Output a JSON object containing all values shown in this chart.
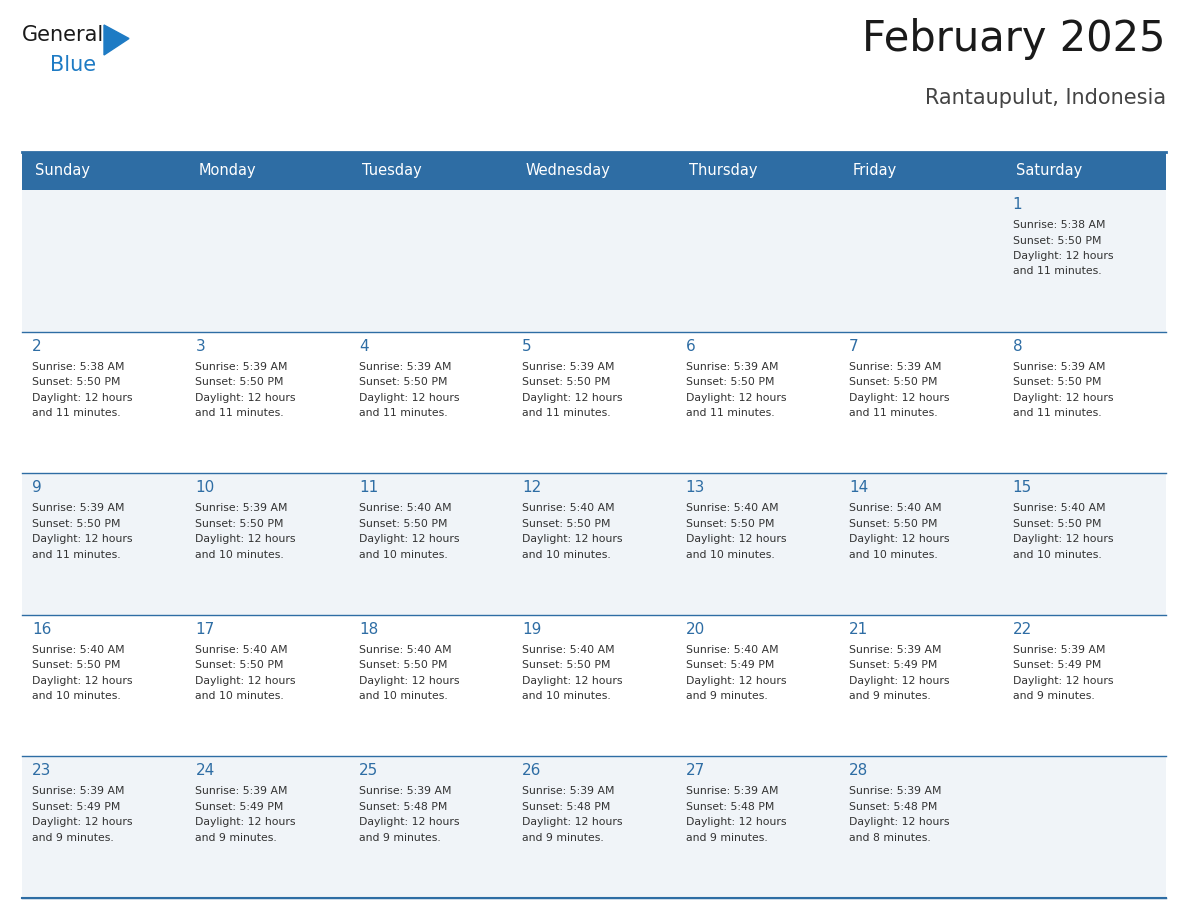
{
  "title": "February 2025",
  "subtitle": "Rantaupulut, Indonesia",
  "days_of_week": [
    "Sunday",
    "Monday",
    "Tuesday",
    "Wednesday",
    "Thursday",
    "Friday",
    "Saturday"
  ],
  "header_bg": "#2E6DA4",
  "header_text_color": "#FFFFFF",
  "row_bg": [
    "#F0F4F8",
    "#FFFFFF",
    "#F0F4F8",
    "#FFFFFF",
    "#F0F4F8"
  ],
  "cell_text_color": "#333333",
  "day_number_color": "#2E6DA4",
  "grid_color": "#2E6DA4",
  "title_color": "#1a1a1a",
  "subtitle_color": "#444444",
  "logo_general_color": "#1a1a1a",
  "logo_blue_color": "#1E7BC4",
  "calendar_data": [
    [
      null,
      null,
      null,
      null,
      null,
      null,
      {
        "day": 1,
        "sunrise": "5:38 AM",
        "sunset": "5:50 PM",
        "daylight": "12 hours and 11 minutes."
      }
    ],
    [
      {
        "day": 2,
        "sunrise": "5:38 AM",
        "sunset": "5:50 PM",
        "daylight": "12 hours and 11 minutes."
      },
      {
        "day": 3,
        "sunrise": "5:39 AM",
        "sunset": "5:50 PM",
        "daylight": "12 hours and 11 minutes."
      },
      {
        "day": 4,
        "sunrise": "5:39 AM",
        "sunset": "5:50 PM",
        "daylight": "12 hours and 11 minutes."
      },
      {
        "day": 5,
        "sunrise": "5:39 AM",
        "sunset": "5:50 PM",
        "daylight": "12 hours and 11 minutes."
      },
      {
        "day": 6,
        "sunrise": "5:39 AM",
        "sunset": "5:50 PM",
        "daylight": "12 hours and 11 minutes."
      },
      {
        "day": 7,
        "sunrise": "5:39 AM",
        "sunset": "5:50 PM",
        "daylight": "12 hours and 11 minutes."
      },
      {
        "day": 8,
        "sunrise": "5:39 AM",
        "sunset": "5:50 PM",
        "daylight": "12 hours and 11 minutes."
      }
    ],
    [
      {
        "day": 9,
        "sunrise": "5:39 AM",
        "sunset": "5:50 PM",
        "daylight": "12 hours and 11 minutes."
      },
      {
        "day": 10,
        "sunrise": "5:39 AM",
        "sunset": "5:50 PM",
        "daylight": "12 hours and 10 minutes."
      },
      {
        "day": 11,
        "sunrise": "5:40 AM",
        "sunset": "5:50 PM",
        "daylight": "12 hours and 10 minutes."
      },
      {
        "day": 12,
        "sunrise": "5:40 AM",
        "sunset": "5:50 PM",
        "daylight": "12 hours and 10 minutes."
      },
      {
        "day": 13,
        "sunrise": "5:40 AM",
        "sunset": "5:50 PM",
        "daylight": "12 hours and 10 minutes."
      },
      {
        "day": 14,
        "sunrise": "5:40 AM",
        "sunset": "5:50 PM",
        "daylight": "12 hours and 10 minutes."
      },
      {
        "day": 15,
        "sunrise": "5:40 AM",
        "sunset": "5:50 PM",
        "daylight": "12 hours and 10 minutes."
      }
    ],
    [
      {
        "day": 16,
        "sunrise": "5:40 AM",
        "sunset": "5:50 PM",
        "daylight": "12 hours and 10 minutes."
      },
      {
        "day": 17,
        "sunrise": "5:40 AM",
        "sunset": "5:50 PM",
        "daylight": "12 hours and 10 minutes."
      },
      {
        "day": 18,
        "sunrise": "5:40 AM",
        "sunset": "5:50 PM",
        "daylight": "12 hours and 10 minutes."
      },
      {
        "day": 19,
        "sunrise": "5:40 AM",
        "sunset": "5:50 PM",
        "daylight": "12 hours and 10 minutes."
      },
      {
        "day": 20,
        "sunrise": "5:40 AM",
        "sunset": "5:49 PM",
        "daylight": "12 hours and 9 minutes."
      },
      {
        "day": 21,
        "sunrise": "5:39 AM",
        "sunset": "5:49 PM",
        "daylight": "12 hours and 9 minutes."
      },
      {
        "day": 22,
        "sunrise": "5:39 AM",
        "sunset": "5:49 PM",
        "daylight": "12 hours and 9 minutes."
      }
    ],
    [
      {
        "day": 23,
        "sunrise": "5:39 AM",
        "sunset": "5:49 PM",
        "daylight": "12 hours and 9 minutes."
      },
      {
        "day": 24,
        "sunrise": "5:39 AM",
        "sunset": "5:49 PM",
        "daylight": "12 hours and 9 minutes."
      },
      {
        "day": 25,
        "sunrise": "5:39 AM",
        "sunset": "5:48 PM",
        "daylight": "12 hours and 9 minutes."
      },
      {
        "day": 26,
        "sunrise": "5:39 AM",
        "sunset": "5:48 PM",
        "daylight": "12 hours and 9 minutes."
      },
      {
        "day": 27,
        "sunrise": "5:39 AM",
        "sunset": "5:48 PM",
        "daylight": "12 hours and 9 minutes."
      },
      {
        "day": 28,
        "sunrise": "5:39 AM",
        "sunset": "5:48 PM",
        "daylight": "12 hours and 8 minutes."
      },
      null
    ]
  ]
}
